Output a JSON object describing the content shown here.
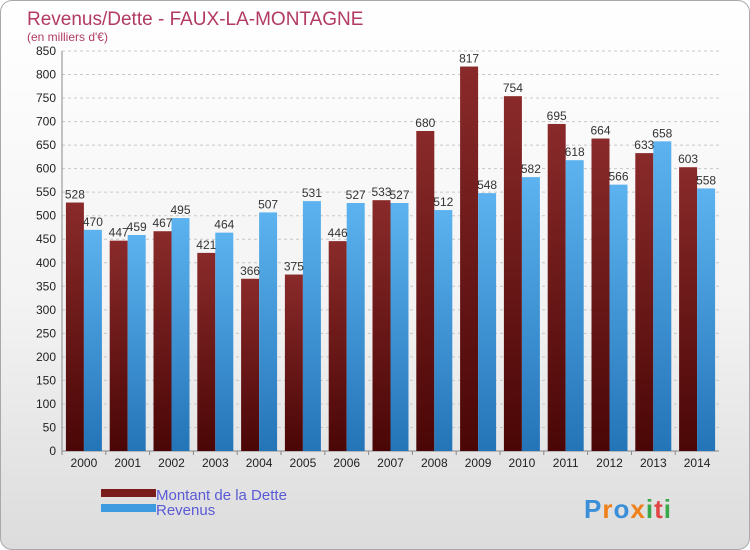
{
  "chart_data": {
    "type": "bar",
    "title": "Revenus/Dette - FAUX-LA-MONTAGNE",
    "subtitle": "(en milliers d'€)",
    "categories": [
      "2000",
      "2001",
      "2002",
      "2003",
      "2004",
      "2005",
      "2006",
      "2007",
      "2008",
      "2009",
      "2010",
      "2011",
      "2012",
      "2013",
      "2014"
    ],
    "series": [
      {
        "name": "Montant de la Dette",
        "color": "#7a1c1c",
        "values": [
          528,
          447,
          467,
          421,
          366,
          375,
          446,
          533,
          680,
          817,
          754,
          695,
          664,
          633,
          603
        ]
      },
      {
        "name": "Revenus",
        "color": "#3f9be0",
        "values": [
          470,
          459,
          495,
          464,
          507,
          531,
          527,
          527,
          512,
          548,
          582,
          618,
          566,
          658,
          558
        ]
      }
    ],
    "ylim": [
      0,
      850
    ],
    "yticks": [
      0,
      50,
      100,
      150,
      200,
      250,
      300,
      350,
      400,
      450,
      500,
      550,
      600,
      650,
      700,
      750,
      800,
      850
    ],
    "grid": true,
    "legend_position": "bottom-left"
  },
  "brand": {
    "letters": [
      "P",
      "r",
      "o",
      "x",
      "i",
      "t",
      "i"
    ],
    "colors": [
      "#3b8fd8",
      "#f0801a",
      "#3b8fd8",
      "#f0801a",
      "#3aa84a",
      "#e04646",
      "#3aa84a"
    ]
  }
}
